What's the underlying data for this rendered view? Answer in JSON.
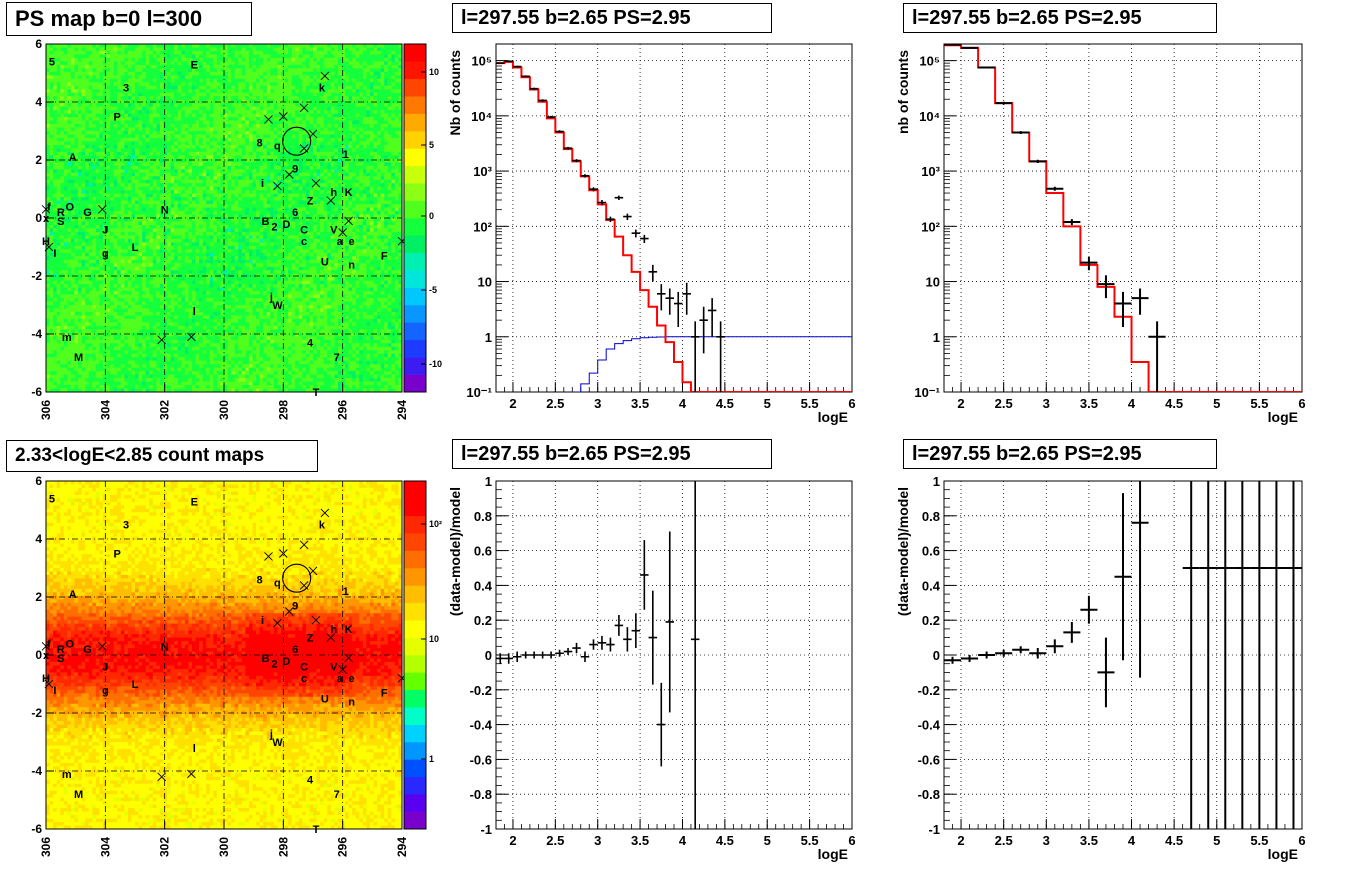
{
  "panels": {
    "ps_map": {
      "title": "PS map b=0 l=300",
      "palette_ticks": [
        "10",
        "5",
        "0",
        "-5",
        "-10"
      ]
    },
    "spectrum_left": {
      "title": "l=297.55 b=2.65 PS=2.95"
    },
    "spectrum_right": {
      "title": "l=297.55 b=2.65 PS=2.95"
    },
    "count_map": {
      "title": "2.33<logE<2.85 count maps",
      "palette_ticks": [
        "10²",
        "10",
        "1"
      ]
    },
    "residual_left": {
      "title": "l=297.55 b=2.65 PS=2.95"
    },
    "residual_right": {
      "title": "l=297.55 b=2.65 PS=2.95"
    }
  },
  "map_axes": {
    "x_ticks": [
      "306",
      "304",
      "302",
      "300",
      "298",
      "296",
      "294"
    ],
    "y_ticks": [
      "6",
      "4",
      "2",
      "0",
      "-2",
      "-4",
      "-6"
    ]
  },
  "source_labels": [
    {
      "t": "5",
      "l": 305.8,
      "b": 5.4
    },
    {
      "t": "E",
      "l": 301.0,
      "b": 5.3
    },
    {
      "t": "3",
      "l": 303.3,
      "b": 4.5
    },
    {
      "t": "k",
      "l": 296.7,
      "b": 4.5
    },
    {
      "t": "P",
      "l": 303.6,
      "b": 3.5
    },
    {
      "t": "8",
      "l": 298.8,
      "b": 2.6
    },
    {
      "t": "q",
      "l": 298.2,
      "b": 2.5
    },
    {
      "t": "9",
      "l": 297.6,
      "b": 1.7
    },
    {
      "t": "A",
      "l": 305.1,
      "b": 2.1
    },
    {
      "t": "1",
      "l": 295.9,
      "b": 2.2
    },
    {
      "t": "i",
      "l": 298.7,
      "b": 1.2
    },
    {
      "t": "h",
      "l": 296.3,
      "b": 0.9
    },
    {
      "t": "K",
      "l": 295.8,
      "b": 0.9
    },
    {
      "t": "f",
      "l": 305.9,
      "b": 0.4
    },
    {
      "t": "R",
      "l": 305.5,
      "b": 0.2
    },
    {
      "t": "O",
      "l": 305.2,
      "b": 0.4
    },
    {
      "t": "G",
      "l": 304.6,
      "b": 0.2
    },
    {
      "t": "N",
      "l": 302.0,
      "b": 0.3
    },
    {
      "t": "Z",
      "l": 297.1,
      "b": 0.6
    },
    {
      "t": "6",
      "l": 297.6,
      "b": 0.2
    },
    {
      "t": "x",
      "l": 306.0,
      "b": 0.0
    },
    {
      "t": "S",
      "l": 305.5,
      "b": -0.1
    },
    {
      "t": "J",
      "l": 304.0,
      "b": -0.4
    },
    {
      "t": "B",
      "l": 298.6,
      "b": -0.1
    },
    {
      "t": "2",
      "l": 298.3,
      "b": -0.3
    },
    {
      "t": "D",
      "l": 297.9,
      "b": -0.2
    },
    {
      "t": "C",
      "l": 297.3,
      "b": -0.4
    },
    {
      "t": "V",
      "l": 296.3,
      "b": -0.4
    },
    {
      "t": "c",
      "l": 297.3,
      "b": -0.8
    },
    {
      "t": "a",
      "l": 296.1,
      "b": -0.8
    },
    {
      "t": "e",
      "l": 295.7,
      "b": -0.8
    },
    {
      "t": "H",
      "l": 306.0,
      "b": -0.8
    },
    {
      "t": "L",
      "l": 303.0,
      "b": -1.0
    },
    {
      "t": "I",
      "l": 305.7,
      "b": -1.2
    },
    {
      "t": "g",
      "l": 304.0,
      "b": -1.2
    },
    {
      "t": "U",
      "l": 296.6,
      "b": -1.5
    },
    {
      "t": "n",
      "l": 295.7,
      "b": -1.6
    },
    {
      "t": "F",
      "l": 294.6,
      "b": -1.3
    },
    {
      "t": "j",
      "l": 298.4,
      "b": -2.7
    },
    {
      "t": "W",
      "l": 298.2,
      "b": -3.0
    },
    {
      "t": "l",
      "l": 301.0,
      "b": -3.2
    },
    {
      "t": "m",
      "l": 305.3,
      "b": -4.1
    },
    {
      "t": "4",
      "l": 297.1,
      "b": -4.3
    },
    {
      "t": "M",
      "l": 304.9,
      "b": -4.8
    },
    {
      "t": "7",
      "l": 296.2,
      "b": -4.8
    },
    {
      "t": "T",
      "l": 296.9,
      "b": -6.0
    }
  ],
  "source_crosses": [
    [
      296.6,
      4.9
    ],
    [
      298.5,
      3.4
    ],
    [
      298.0,
      3.5
    ],
    [
      297.3,
      3.8
    ],
    [
      297.0,
      2.9
    ],
    [
      296.9,
      1.2
    ],
    [
      297.8,
      1.5
    ],
    [
      296.4,
      0.6
    ],
    [
      295.8,
      -0.1
    ],
    [
      306.0,
      0.3
    ],
    [
      304.1,
      0.3
    ],
    [
      294.0,
      -0.8
    ],
    [
      305.9,
      -1.0
    ],
    [
      302.1,
      -4.2
    ],
    [
      301.1,
      -4.1
    ],
    [
      296.0,
      -0.5
    ],
    [
      297.3,
      2.4
    ],
    [
      298.2,
      1.1
    ]
  ],
  "palettes": {
    "ps_colors": [
      "#7a00cc",
      "#3c1cf0",
      "#1e3cff",
      "#1464ff",
      "#0a96ff",
      "#00c8ff",
      "#00e6dc",
      "#00f0b4",
      "#00f064",
      "#14ff3c",
      "#50ff1e",
      "#8cff14",
      "#c8ff0a",
      "#ffff00",
      "#ffd200",
      "#ffaa00",
      "#ff7800",
      "#ff4600",
      "#ff1400",
      "#ff0000"
    ],
    "count_colors": [
      "#7a00cc",
      "#5a00f0",
      "#2828ff",
      "#0050ff",
      "#0096ff",
      "#00d2ff",
      "#00ffc8",
      "#00ff64",
      "#64ff00",
      "#b4ff00",
      "#e6ff00",
      "#ffff00",
      "#ffe100",
      "#ffbe00",
      "#ff9600",
      "#ff6e00",
      "#ff4600",
      "#ff2800",
      "#ff0000",
      "#ff0000"
    ]
  },
  "chart_data": [
    {
      "type": "line",
      "panel": "spectrum_left",
      "xlabel": "logE",
      "ylabel": "Nb of counts",
      "xlim": [
        1.8,
        6.0
      ],
      "ylim": [
        0.1,
        200000
      ],
      "yscale": "log",
      "x_ticks": [
        "2",
        "2.5",
        "3",
        "3.5",
        "4",
        "4.5",
        "5",
        "5.5",
        "6"
      ],
      "y_ticks": [
        "10⁻¹",
        "1",
        "10",
        "10²",
        "10³",
        "10⁴",
        "10⁵"
      ],
      "grid": true,
      "model_red": {
        "bin_width": 0.1,
        "x_start": 1.8,
        "values": [
          90000,
          95000,
          75000,
          50000,
          30000,
          18000,
          9000,
          5000,
          2500,
          1500,
          800,
          450,
          250,
          130,
          65,
          30,
          15,
          7,
          3.5,
          1.6,
          0.8,
          0.35,
          0.15,
          0.1,
          0.1,
          0.1,
          0.1,
          0.1,
          0.1,
          0.1,
          0.1,
          0.1,
          0.1,
          0.1,
          0.1,
          0.1,
          0.1,
          0.1,
          0.1,
          0.1,
          0.1,
          0.1
        ]
      },
      "model_blue": {
        "bin_width": 0.1,
        "x_start": 1.8,
        "values": [
          0,
          0,
          0,
          0,
          0,
          0,
          0,
          0,
          0,
          0.1,
          0.14,
          0.22,
          0.38,
          0.6,
          0.75,
          0.85,
          0.92,
          0.96,
          0.98,
          0.99,
          1,
          1,
          1,
          1,
          1,
          1,
          1,
          1,
          1,
          1,
          1,
          1,
          1,
          1,
          1,
          1,
          1,
          1,
          1,
          1,
          1,
          1
        ]
      },
      "data_points": [
        {
          "x": 1.85,
          "y": 90000,
          "err": 3000
        },
        {
          "x": 1.95,
          "y": 97000,
          "err": 3000
        },
        {
          "x": 2.05,
          "y": 78000,
          "err": 3000
        },
        {
          "x": 2.15,
          "y": 52000,
          "err": 2000
        },
        {
          "x": 2.25,
          "y": 31000,
          "err": 1500
        },
        {
          "x": 2.35,
          "y": 19000,
          "err": 1000
        },
        {
          "x": 2.45,
          "y": 9500,
          "err": 500
        },
        {
          "x": 2.55,
          "y": 5200,
          "err": 300
        },
        {
          "x": 2.65,
          "y": 2600,
          "err": 150
        },
        {
          "x": 2.75,
          "y": 1550,
          "err": 100
        },
        {
          "x": 2.85,
          "y": 820,
          "err": 60
        },
        {
          "x": 2.95,
          "y": 470,
          "err": 40
        },
        {
          "x": 3.05,
          "y": 270,
          "err": 30
        },
        {
          "x": 3.15,
          "y": 135,
          "err": 15
        },
        {
          "x": 3.25,
          "y": 330,
          "err": 30
        },
        {
          "x": 3.35,
          "y": 150,
          "err": 20
        },
        {
          "x": 3.45,
          "y": 75,
          "err": 12
        },
        {
          "x": 3.55,
          "y": 60,
          "err": 10
        },
        {
          "x": 3.65,
          "y": 15,
          "err": 5
        },
        {
          "x": 3.75,
          "y": 6,
          "err": 3
        },
        {
          "x": 3.85,
          "y": 5,
          "err": 2.5
        },
        {
          "x": 3.95,
          "y": 4,
          "err": 2.5
        },
        {
          "x": 4.05,
          "y": 6,
          "err": 3.5
        },
        {
          "x": 4.15,
          "y": 1,
          "err": 0.9
        },
        {
          "x": 4.25,
          "y": 2,
          "err": 1.5
        },
        {
          "x": 4.35,
          "y": 3,
          "err": 2
        },
        {
          "x": 4.45,
          "y": 1,
          "err": 0.9
        }
      ]
    },
    {
      "type": "line",
      "panel": "spectrum_right",
      "xlabel": "logE",
      "ylabel": "nb of counts",
      "xlim": [
        1.8,
        6.0
      ],
      "ylim": [
        0.1,
        200000
      ],
      "yscale": "log",
      "x_ticks": [
        "2",
        "2.5",
        "3",
        "3.5",
        "4",
        "4.5",
        "5",
        "5.5",
        "6"
      ],
      "y_ticks": [
        "10⁻¹",
        "1",
        "10",
        "10²",
        "10³",
        "10⁴",
        "10⁵"
      ],
      "grid": true,
      "model_red": {
        "bin_width": 0.2,
        "x_start": 1.8,
        "values": [
          190000,
          170000,
          75000,
          17000,
          5000,
          1500,
          400,
          100,
          20,
          8,
          2.3,
          0.35,
          0.1,
          0.1,
          0.1,
          0.1,
          0.1,
          0.1,
          0.1,
          0.1,
          0.1
        ]
      },
      "data_points": [
        {
          "x": 1.9,
          "y": 195000,
          "err": 5000
        },
        {
          "x": 2.1,
          "y": 170000,
          "err": 4000
        },
        {
          "x": 2.3,
          "y": 75000,
          "err": 3000
        },
        {
          "x": 2.5,
          "y": 17000,
          "err": 1000
        },
        {
          "x": 2.7,
          "y": 5000,
          "err": 300
        },
        {
          "x": 2.9,
          "y": 1500,
          "err": 100
        },
        {
          "x": 3.1,
          "y": 480,
          "err": 40
        },
        {
          "x": 3.3,
          "y": 120,
          "err": 15
        },
        {
          "x": 3.5,
          "y": 22,
          "err": 6
        },
        {
          "x": 3.7,
          "y": 9,
          "err": 4
        },
        {
          "x": 3.9,
          "y": 4,
          "err": 2.5
        },
        {
          "x": 4.1,
          "y": 5,
          "err": 2.5
        },
        {
          "x": 4.3,
          "y": 1,
          "err": 0.9
        }
      ]
    },
    {
      "type": "scatter",
      "panel": "residual_left",
      "xlabel": "logE",
      "ylabel": "(data-model)/model",
      "xlim": [
        1.8,
        6.0
      ],
      "ylim": [
        -1,
        1
      ],
      "x_ticks": [
        "2",
        "2.5",
        "3",
        "3.5",
        "4",
        "4.5",
        "5",
        "5.5",
        "6"
      ],
      "y_ticks": [
        "1",
        "0.8",
        "0.6",
        "0.4",
        "0.2",
        "0",
        "-0.2",
        "-0.4",
        "-0.6",
        "-0.8",
        "-1"
      ],
      "grid": true,
      "data_points": [
        {
          "x": 1.85,
          "y": -0.02,
          "err": 0.03
        },
        {
          "x": 1.95,
          "y": -0.02,
          "err": 0.03
        },
        {
          "x": 2.05,
          "y": -0.01,
          "err": 0.03
        },
        {
          "x": 2.15,
          "y": 0.0,
          "err": 0.02
        },
        {
          "x": 2.25,
          "y": 0.0,
          "err": 0.02
        },
        {
          "x": 2.35,
          "y": 0.0,
          "err": 0.02
        },
        {
          "x": 2.45,
          "y": 0.0,
          "err": 0.02
        },
        {
          "x": 2.55,
          "y": 0.01,
          "err": 0.02
        },
        {
          "x": 2.65,
          "y": 0.02,
          "err": 0.02
        },
        {
          "x": 2.75,
          "y": 0.04,
          "err": 0.03
        },
        {
          "x": 2.85,
          "y": -0.01,
          "err": 0.03
        },
        {
          "x": 2.95,
          "y": 0.06,
          "err": 0.03
        },
        {
          "x": 3.05,
          "y": 0.07,
          "err": 0.04
        },
        {
          "x": 3.15,
          "y": 0.06,
          "err": 0.04
        },
        {
          "x": 3.25,
          "y": 0.17,
          "err": 0.06
        },
        {
          "x": 3.35,
          "y": 0.09,
          "err": 0.07
        },
        {
          "x": 3.45,
          "y": 0.14,
          "err": 0.1
        },
        {
          "x": 3.55,
          "y": 0.46,
          "err": 0.2
        },
        {
          "x": 3.65,
          "y": 0.1,
          "err": 0.27
        },
        {
          "x": 3.75,
          "y": -0.4,
          "err": 0.24
        },
        {
          "x": 3.85,
          "y": 0.19,
          "err": 0.52
        },
        {
          "x": 4.15,
          "y": 0.09,
          "err": 1.3
        }
      ]
    },
    {
      "type": "scatter",
      "panel": "residual_right",
      "xlabel": "logE",
      "ylabel": "(data-model)/model",
      "xlim": [
        1.8,
        6.0
      ],
      "ylim": [
        -1,
        1
      ],
      "x_ticks": [
        "2",
        "2.5",
        "3",
        "3.5",
        "4",
        "4.5",
        "5",
        "5.5",
        "6"
      ],
      "y_ticks": [
        "1",
        "0.8",
        "0.6",
        "0.4",
        "0.2",
        "0",
        "-0.2",
        "-0.4",
        "-0.6",
        "-0.8",
        "-1"
      ],
      "grid": true,
      "data_points": [
        {
          "x": 1.9,
          "y": -0.03,
          "err": 0.02
        },
        {
          "x": 2.1,
          "y": -0.02,
          "err": 0.02
        },
        {
          "x": 2.3,
          "y": 0.0,
          "err": 0.02
        },
        {
          "x": 2.5,
          "y": 0.01,
          "err": 0.02
        },
        {
          "x": 2.7,
          "y": 0.03,
          "err": 0.02
        },
        {
          "x": 2.9,
          "y": 0.01,
          "err": 0.03
        },
        {
          "x": 3.1,
          "y": 0.05,
          "err": 0.04
        },
        {
          "x": 3.3,
          "y": 0.13,
          "err": 0.06
        },
        {
          "x": 3.5,
          "y": 0.26,
          "err": 0.08
        },
        {
          "x": 3.7,
          "y": -0.1,
          "err": 0.2
        },
        {
          "x": 3.9,
          "y": 0.45,
          "err": 0.48
        },
        {
          "x": 4.1,
          "y": 0.76,
          "err": 0.89
        },
        {
          "x": 4.7,
          "y": 0.5,
          "err": 5
        },
        {
          "x": 4.9,
          "y": 0.5,
          "err": 5
        },
        {
          "x": 5.1,
          "y": 0.5,
          "err": 5
        },
        {
          "x": 5.3,
          "y": 0.5,
          "err": 5
        },
        {
          "x": 5.5,
          "y": 0.5,
          "err": 5
        },
        {
          "x": 5.7,
          "y": 0.5,
          "err": 5
        },
        {
          "x": 5.9,
          "y": 0.5,
          "err": 5
        }
      ]
    }
  ]
}
